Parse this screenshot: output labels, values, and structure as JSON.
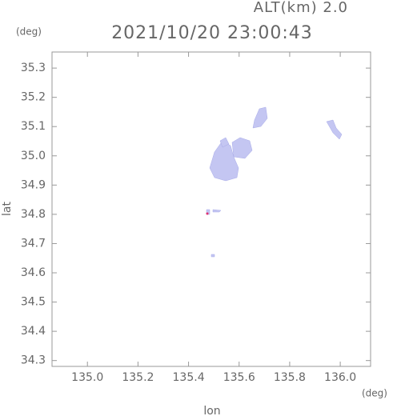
{
  "chart_data": {
    "type": "map",
    "title": "2021/10/20 23:00:43",
    "altitude_label": "ALT(km) 2.0",
    "y_unit": "(deg)",
    "x_unit": "(deg)",
    "xlabel": "lon",
    "ylabel": "lat",
    "xlim": [
      134.86,
      136.12
    ],
    "ylim": [
      34.28,
      35.355
    ],
    "xticks": [
      {
        "value": 135.0,
        "label": "135.0"
      },
      135.2,
      135.4,
      135.6,
      135.8,
      {
        "value": 136.0,
        "label": "136.0"
      }
    ],
    "yticks": [
      34.3,
      34.4,
      34.5,
      34.6,
      34.7,
      34.8,
      34.9,
      {
        "value": 35.0,
        "label": "35.0"
      },
      35.1,
      35.2,
      35.3
    ],
    "grid": false
  }
}
